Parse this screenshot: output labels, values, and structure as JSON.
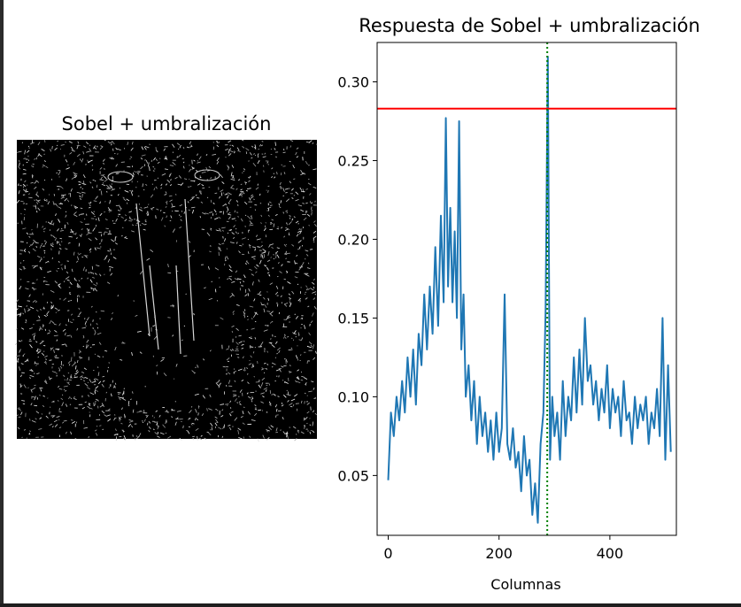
{
  "left_panel": {
    "title": "Sobel + umbralización",
    "image_description_icon": "edge-map-image"
  },
  "chart_data": {
    "type": "line",
    "title": "Respuesta de Sobel + umbralización",
    "xlabel": "Columnas",
    "ylabel": "",
    "xlim": [
      -20,
      520
    ],
    "ylim": [
      0.012,
      0.325
    ],
    "xticks": [
      0,
      200,
      400
    ],
    "yticks": [
      0.05,
      0.1,
      0.15,
      0.2,
      0.25,
      0.3
    ],
    "xtick_labels": [
      "0",
      "200",
      "400"
    ],
    "ytick_labels": [
      "0.05",
      "0.10",
      "0.15",
      "0.20",
      "0.25",
      "0.30"
    ],
    "threshold": 0.283,
    "vline_x": 287,
    "series": [
      {
        "color": "#1f77b4",
        "points": [
          [
            0,
            0.047
          ],
          [
            5,
            0.09
          ],
          [
            10,
            0.075
          ],
          [
            15,
            0.1
          ],
          [
            20,
            0.085
          ],
          [
            25,
            0.11
          ],
          [
            30,
            0.09
          ],
          [
            35,
            0.125
          ],
          [
            40,
            0.1
          ],
          [
            45,
            0.13
          ],
          [
            50,
            0.095
          ],
          [
            55,
            0.14
          ],
          [
            60,
            0.12
          ],
          [
            65,
            0.165
          ],
          [
            70,
            0.13
          ],
          [
            75,
            0.17
          ],
          [
            80,
            0.14
          ],
          [
            85,
            0.195
          ],
          [
            90,
            0.145
          ],
          [
            95,
            0.215
          ],
          [
            100,
            0.16
          ],
          [
            104,
            0.277
          ],
          [
            108,
            0.17
          ],
          [
            112,
            0.22
          ],
          [
            116,
            0.16
          ],
          [
            120,
            0.205
          ],
          [
            124,
            0.15
          ],
          [
            128,
            0.275
          ],
          [
            132,
            0.13
          ],
          [
            136,
            0.165
          ],
          [
            140,
            0.1
          ],
          [
            145,
            0.12
          ],
          [
            150,
            0.085
          ],
          [
            155,
            0.11
          ],
          [
            160,
            0.07
          ],
          [
            165,
            0.1
          ],
          [
            170,
            0.075
          ],
          [
            175,
            0.09
          ],
          [
            180,
            0.065
          ],
          [
            185,
            0.085
          ],
          [
            190,
            0.06
          ],
          [
            195,
            0.09
          ],
          [
            200,
            0.065
          ],
          [
            205,
            0.08
          ],
          [
            210,
            0.165
          ],
          [
            215,
            0.07
          ],
          [
            220,
            0.06
          ],
          [
            225,
            0.08
          ],
          [
            230,
            0.055
          ],
          [
            235,
            0.065
          ],
          [
            240,
            0.04
          ],
          [
            245,
            0.075
          ],
          [
            250,
            0.05
          ],
          [
            255,
            0.06
          ],
          [
            260,
            0.025
          ],
          [
            265,
            0.045
          ],
          [
            270,
            0.02
          ],
          [
            275,
            0.07
          ],
          [
            280,
            0.09
          ],
          [
            284,
            0.155
          ],
          [
            288,
            0.316
          ],
          [
            292,
            0.06
          ],
          [
            296,
            0.1
          ],
          [
            300,
            0.075
          ],
          [
            305,
            0.09
          ],
          [
            310,
            0.06
          ],
          [
            315,
            0.11
          ],
          [
            320,
            0.075
          ],
          [
            325,
            0.1
          ],
          [
            330,
            0.085
          ],
          [
            335,
            0.125
          ],
          [
            340,
            0.09
          ],
          [
            345,
            0.13
          ],
          [
            350,
            0.095
          ],
          [
            355,
            0.15
          ],
          [
            360,
            0.11
          ],
          [
            365,
            0.12
          ],
          [
            370,
            0.095
          ],
          [
            375,
            0.11
          ],
          [
            380,
            0.085
          ],
          [
            385,
            0.105
          ],
          [
            390,
            0.09
          ],
          [
            395,
            0.12
          ],
          [
            400,
            0.08
          ],
          [
            405,
            0.105
          ],
          [
            410,
            0.09
          ],
          [
            415,
            0.1
          ],
          [
            420,
            0.075
          ],
          [
            425,
            0.11
          ],
          [
            430,
            0.085
          ],
          [
            435,
            0.09
          ],
          [
            440,
            0.07
          ],
          [
            445,
            0.1
          ],
          [
            450,
            0.08
          ],
          [
            455,
            0.095
          ],
          [
            460,
            0.085
          ],
          [
            465,
            0.1
          ],
          [
            470,
            0.07
          ],
          [
            475,
            0.09
          ],
          [
            480,
            0.08
          ],
          [
            485,
            0.105
          ],
          [
            490,
            0.075
          ],
          [
            495,
            0.15
          ],
          [
            500,
            0.06
          ],
          [
            505,
            0.12
          ],
          [
            510,
            0.065
          ]
        ]
      }
    ]
  }
}
